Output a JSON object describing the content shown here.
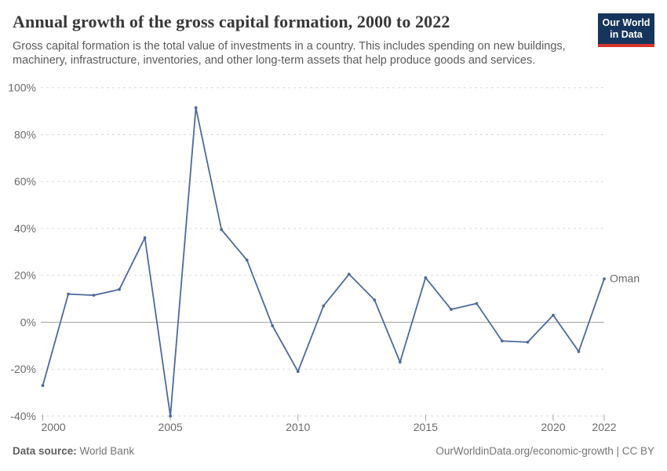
{
  "header": {
    "title": "Annual growth of the gross capital formation, 2000 to 2022",
    "subtitle": "Gross capital formation is the total value of investments in a country. This includes spending on new buildings, machinery, infrastructure, inventories, and other long-term assets that help produce goods and services.",
    "logo": {
      "line1": "Our World",
      "line2": "in Data",
      "bg_color": "#16355c",
      "bar_color": "#d7352e"
    }
  },
  "chart_data": {
    "type": "line",
    "title": "Annual growth of the gross capital formation, 2000 to 2022",
    "x": [
      2000,
      2001,
      2002,
      2003,
      2004,
      2005,
      2006,
      2007,
      2008,
      2009,
      2010,
      2011,
      2012,
      2013,
      2014,
      2015,
      2016,
      2017,
      2018,
      2019,
      2020,
      2021,
      2022
    ],
    "series": [
      {
        "name": "Oman",
        "color": "#4C6A9C",
        "values": [
          -27,
          12,
          11.5,
          14,
          36,
          -40,
          91.5,
          39.5,
          26.5,
          -1.5,
          -21,
          7,
          20.5,
          9.5,
          -17,
          19,
          5.5,
          8,
          -8,
          -8.5,
          3,
          -12.5,
          18.5
        ]
      }
    ],
    "unit": "%",
    "ylim": [
      -40,
      100
    ],
    "yticks": [
      100,
      80,
      60,
      40,
      20,
      0,
      -20,
      -40
    ],
    "xticks": [
      2000,
      2005,
      2010,
      2015,
      2020,
      2022
    ],
    "grid": "horizontal-dashed",
    "zero_line": true,
    "legend_position": "end-of-line",
    "end_label": "Oman"
  },
  "footer": {
    "source_label": "Data source:",
    "source_value": "World Bank",
    "rights": "OurWorldinData.org/economic-growth | CC BY"
  },
  "colors": {
    "line": "#4C6A9C",
    "grid": "#d9d9d9",
    "zero_line": "#a6a6a6",
    "axis_text": "#6b6b6b",
    "tick": "#a6a6a6"
  }
}
